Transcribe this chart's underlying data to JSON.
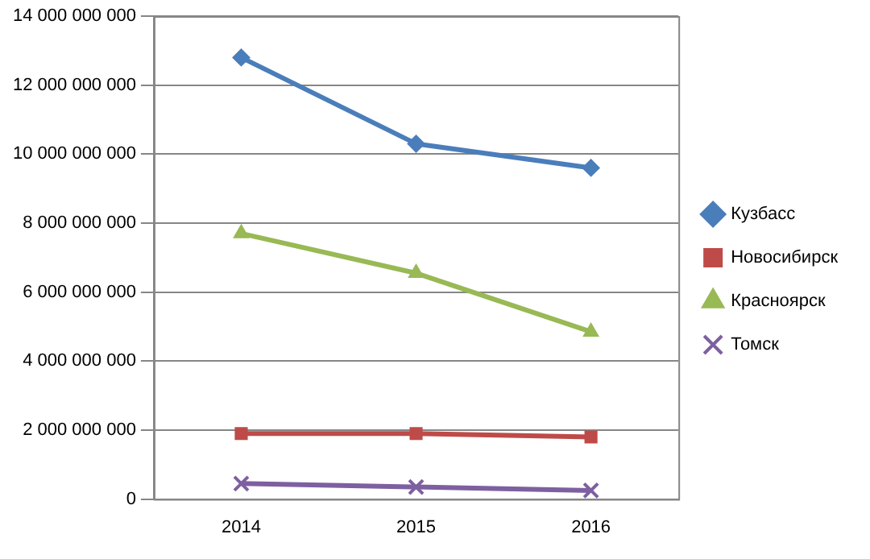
{
  "chart_data": {
    "type": "line",
    "categories": [
      "2014",
      "2015",
      "2016"
    ],
    "series": [
      {
        "name": "Кузбасс",
        "color": "#4a7ebb",
        "marker": "diamond",
        "values": [
          12800000000,
          10300000000,
          9600000000
        ]
      },
      {
        "name": "Новосибирск",
        "color": "#be4b48",
        "marker": "square",
        "values": [
          1900000000,
          1900000000,
          1800000000
        ]
      },
      {
        "name": "Красноярск",
        "color": "#98b954",
        "marker": "triangle",
        "values": [
          7700000000,
          6550000000,
          4850000000
        ]
      },
      {
        "name": "Томск",
        "color": "#7d60a0",
        "marker": "cross",
        "values": [
          450000000,
          350000000,
          250000000
        ]
      }
    ],
    "ylim": [
      0,
      14000000000
    ],
    "yticks": [
      0,
      2000000000,
      4000000000,
      6000000000,
      8000000000,
      10000000000,
      12000000000,
      14000000000
    ],
    "grid": "y",
    "legend": "right",
    "line_style": "solid"
  }
}
